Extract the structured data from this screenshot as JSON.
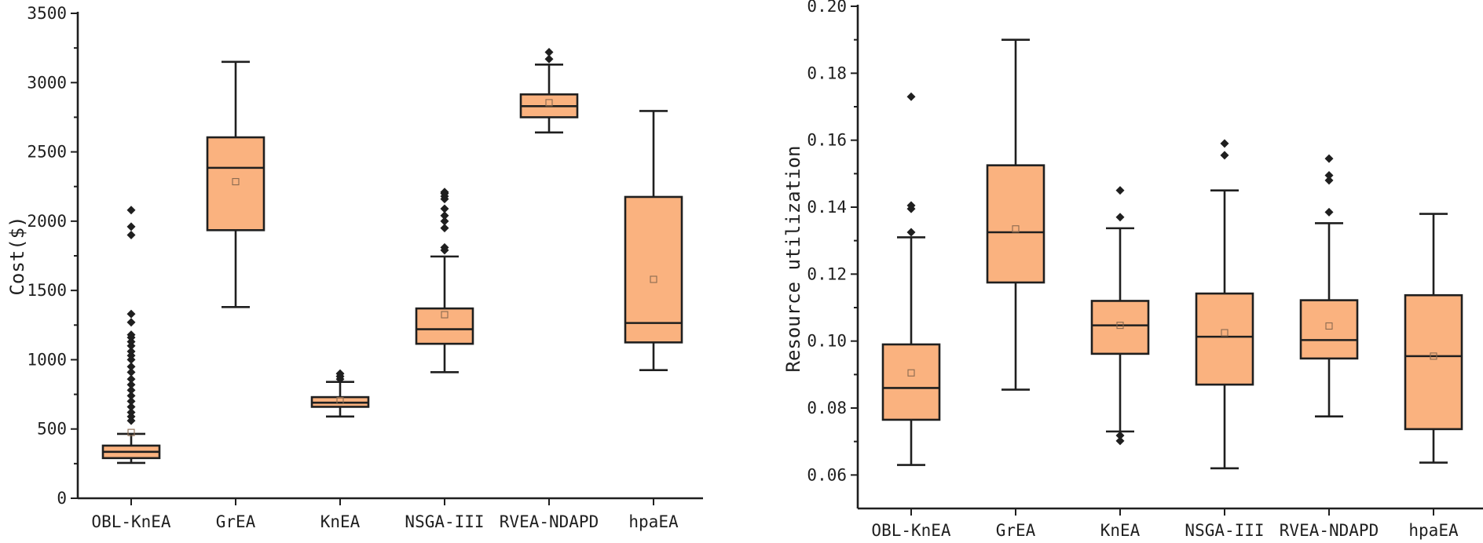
{
  "chart_data": [
    {
      "type": "box",
      "title": "",
      "xlabel": "",
      "ylabel": "Cost($)",
      "ylim": [
        0,
        3500
      ],
      "yticks": [
        "0",
        "500",
        "1000",
        "1500",
        "2000",
        "2500",
        "3000",
        "3500"
      ],
      "grid": false,
      "categories": [
        "OBL-KnEA",
        "GrEA",
        "KnEA",
        "NSGA-III",
        "RVEA-NDAPD",
        "hpaEA"
      ],
      "boxes": [
        {
          "min": 255,
          "q1": 290,
          "median": 335,
          "q3": 380,
          "max": 465,
          "mean": 475,
          "outliers": [
            560,
            590,
            620,
            660,
            700,
            740,
            780,
            820,
            860,
            910,
            950,
            1000,
            1030,
            1060,
            1100,
            1130,
            1160,
            1180,
            1270,
            1330,
            1900,
            1960,
            2080
          ]
        },
        {
          "min": 1380,
          "q1": 1935,
          "median": 2385,
          "q3": 2605,
          "max": 3150,
          "mean": 2285,
          "outliers": []
        },
        {
          "min": 590,
          "q1": 660,
          "median": 690,
          "q3": 730,
          "max": 840,
          "mean": 705,
          "outliers": [
            860,
            880,
            900
          ]
        },
        {
          "min": 910,
          "q1": 1115,
          "median": 1220,
          "q3": 1370,
          "max": 1745,
          "mean": 1325,
          "outliers": [
            1790,
            1810,
            1950,
            2000,
            2040,
            2090,
            2160,
            2180,
            2200,
            2210
          ]
        },
        {
          "min": 2640,
          "q1": 2750,
          "median": 2830,
          "q3": 2915,
          "max": 3130,
          "mean": 2855,
          "outliers": [
            3170,
            3220
          ]
        },
        {
          "min": 925,
          "q1": 1125,
          "median": 1265,
          "q3": 2175,
          "max": 2795,
          "mean": 1580,
          "outliers": []
        }
      ]
    },
    {
      "type": "box",
      "title": "",
      "xlabel": "",
      "ylabel": "Resource utilization",
      "ylim": [
        0.05,
        0.2
      ],
      "yticks": [
        "0.06",
        "0.08",
        "0.10",
        "0.12",
        "0.14",
        "0.16",
        "0.18",
        "0.20"
      ],
      "grid": false,
      "categories": [
        "OBL-KnEA",
        "GrEA",
        "KnEA",
        "NSGA-III",
        "RVEA-NDAPD",
        "hpaEA"
      ],
      "boxes": [
        {
          "min": 0.063,
          "q1": 0.0765,
          "median": 0.086,
          "q3": 0.099,
          "max": 0.131,
          "mean": 0.0905,
          "outliers": [
            0.1325,
            0.1395,
            0.1405,
            0.173
          ]
        },
        {
          "min": 0.0855,
          "q1": 0.1175,
          "median": 0.1325,
          "q3": 0.1525,
          "max": 0.19,
          "mean": 0.1335,
          "outliers": []
        },
        {
          "min": 0.073,
          "q1": 0.0962,
          "median": 0.1047,
          "q3": 0.112,
          "max": 0.1337,
          "mean": 0.1047,
          "outliers": [
            0.0702,
            0.0718,
            0.137,
            0.145
          ]
        },
        {
          "min": 0.062,
          "q1": 0.087,
          "median": 0.1013,
          "q3": 0.1142,
          "max": 0.145,
          "mean": 0.1025,
          "outliers": [
            0.1555,
            0.159
          ]
        },
        {
          "min": 0.0775,
          "q1": 0.0948,
          "median": 0.1003,
          "q3": 0.1122,
          "max": 0.1352,
          "mean": 0.1045,
          "outliers": [
            0.1385,
            0.148,
            0.1495,
            0.1545
          ]
        },
        {
          "min": 0.0637,
          "q1": 0.0737,
          "median": 0.0955,
          "q3": 0.1137,
          "max": 0.138,
          "mean": 0.0955,
          "outliers": []
        }
      ]
    }
  ]
}
